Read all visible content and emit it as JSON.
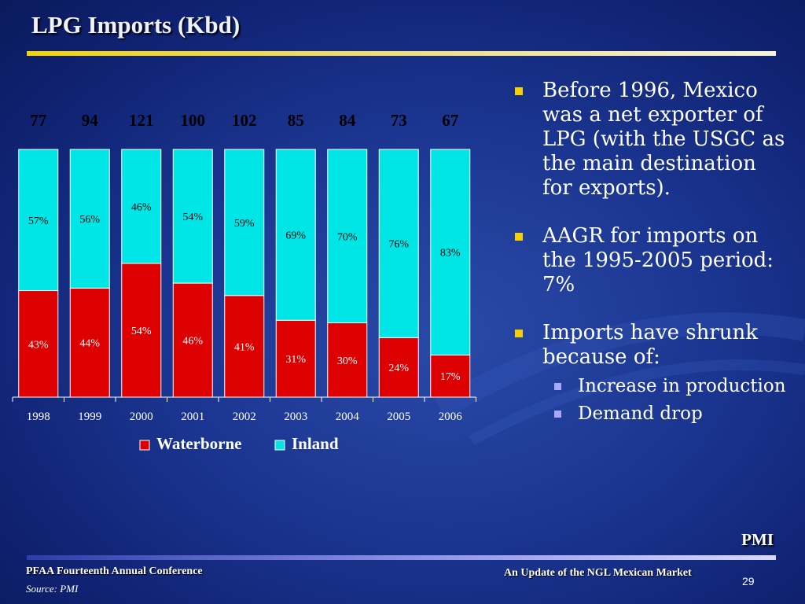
{
  "slide": {
    "title": "LPG Imports (Kbd)",
    "pmi_label": "PMI",
    "footer_left": "PFAA Fourteenth Annual Conference",
    "source": "Source: PMI",
    "footer_right": "An Update of the NGL Mexican Market",
    "page_number": "29"
  },
  "bullets": [
    {
      "text": "Before 1996, Mexico was a net exporter of LPG (with the USGC as the main destination for exports)."
    },
    {
      "text": "AAGR for imports on the 1995-2005 period: 7%"
    },
    {
      "text": "Imports have shrunk because of:",
      "sub": [
        "Increase in production",
        "Demand drop"
      ]
    }
  ],
  "colors": {
    "waterborne": "#dd0000",
    "inland": "#00e6e6",
    "bullet": "#f5d000",
    "sub_bullet": "#a9a8ff"
  },
  "chart_data": {
    "type": "bar",
    "stacked": "percent",
    "categories": [
      "1998",
      "1999",
      "2000",
      "2001",
      "2002",
      "2003",
      "2004",
      "2005",
      "2006"
    ],
    "totals": [
      77,
      94,
      121,
      100,
      102,
      85,
      84,
      73,
      67
    ],
    "series": [
      {
        "name": "Waterborne",
        "values": [
          43,
          44,
          54,
          46,
          41,
          31,
          30,
          24,
          17
        ]
      },
      {
        "name": "Inland",
        "values": [
          57,
          56,
          46,
          54,
          59,
          69,
          70,
          76,
          83
        ]
      }
    ],
    "value_suffix": "%",
    "ylim": [
      0,
      100
    ],
    "legend_position": "bottom",
    "grid": false
  }
}
